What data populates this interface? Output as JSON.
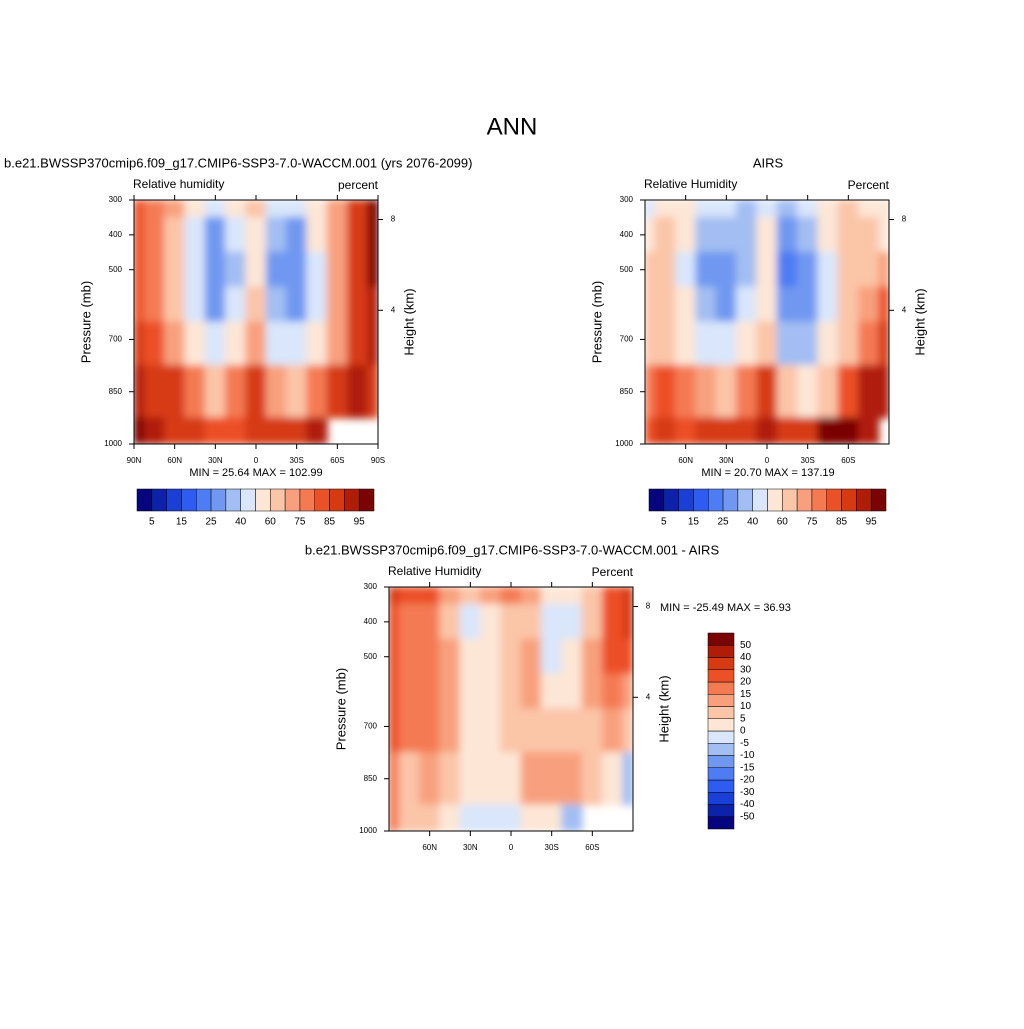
{
  "title": "ANN",
  "chart_data": [
    {
      "type": "contour",
      "title": "b.e21.BWSSP370cmip6.f09_g17.CMIP6-SSP3-7.0-WACCM.001 (yrs 2076-2099)",
      "left_string": "Relative humidity",
      "right_string": "percent",
      "ylabel": "Pressure (mb)",
      "y2label": "Height (km)",
      "stats": "MIN =  25.64  MAX = 102.99",
      "x": [
        90,
        75,
        60,
        45,
        30,
        15,
        0,
        -15,
        -30,
        -45,
        -60,
        -75,
        -90
      ],
      "y": [
        300,
        400,
        500,
        600,
        700,
        850,
        1000
      ],
      "z": [
        [
          80,
          75,
          70,
          55,
          45,
          50,
          60,
          45,
          45,
          55,
          70,
          85,
          95
        ],
        [
          80,
          75,
          65,
          45,
          30,
          40,
          55,
          35,
          30,
          50,
          70,
          85,
          95
        ],
        [
          80,
          75,
          60,
          40,
          28,
          38,
          55,
          32,
          28,
          45,
          70,
          85,
          95
        ],
        [
          82,
          78,
          65,
          45,
          32,
          42,
          60,
          35,
          30,
          45,
          70,
          85,
          90
        ],
        [
          85,
          80,
          70,
          55,
          40,
          50,
          70,
          45,
          40,
          50,
          70,
          85,
          90
        ],
        [
          90,
          88,
          85,
          75,
          65,
          75,
          85,
          70,
          65,
          75,
          85,
          92,
          88
        ],
        [
          95,
          92,
          88,
          85,
          80,
          82,
          88,
          85,
          85,
          90,
          null,
          null,
          null
        ]
      ],
      "xlim": [
        90,
        -90
      ],
      "ylim": [
        1000,
        300
      ],
      "xticks": [
        {
          "value": 90,
          "label": "90N"
        },
        {
          "value": 60,
          "label": "60N"
        },
        {
          "value": 30,
          "label": "30N"
        },
        0,
        {
          "value": -30,
          "label": "30S"
        },
        {
          "value": -60,
          "label": "60S"
        },
        {
          "value": -90,
          "label": "90S"
        }
      ],
      "yticks": [
        300,
        400,
        500,
        700,
        850,
        1000
      ],
      "y2ticks": [
        4,
        8
      ],
      "colorbar": {
        "orientation": "horizontal",
        "levels": [
          5,
          15,
          25,
          40,
          60,
          75,
          85,
          95
        ],
        "colors": [
          "#05057f",
          "#0c22a8",
          "#1a3fd6",
          "#2e5cf0",
          "#4d7cf3",
          "#7098f1",
          "#a3bef3",
          "#d9e6fb",
          "#fde6d6",
          "#fbc5a8",
          "#f8a07d",
          "#f47a52",
          "#ec5026",
          "#d63a12",
          "#b01d07",
          "#7a0403"
        ]
      }
    },
    {
      "type": "contour",
      "title": "AIRS",
      "left_string": "Relative Humidity",
      "right_string": "Percent",
      "ylabel": "Pressure (mb)",
      "y2label": "Height (km)",
      "stats": "MIN =  20.70  MAX = 137.19",
      "x": [
        90,
        75,
        60,
        45,
        30,
        15,
        0,
        -15,
        -30,
        -45,
        -60,
        -75,
        -90
      ],
      "y": [
        300,
        400,
        500,
        600,
        700,
        850,
        1000
      ],
      "z": [
        [
          40,
          50,
          50,
          45,
          40,
          38,
          45,
          35,
          45,
          55,
          65,
          55,
          50
        ],
        [
          55,
          60,
          50,
          38,
          35,
          38,
          50,
          30,
          35,
          55,
          65,
          60,
          55
        ],
        [
          60,
          60,
          45,
          30,
          28,
          35,
          50,
          22,
          30,
          45,
          60,
          65,
          70
        ],
        [
          60,
          60,
          50,
          35,
          30,
          40,
          55,
          25,
          30,
          45,
          60,
          70,
          80
        ],
        [
          65,
          65,
          55,
          45,
          40,
          50,
          65,
          38,
          35,
          50,
          65,
          75,
          85
        ],
        [
          75,
          80,
          75,
          70,
          65,
          75,
          85,
          60,
          55,
          65,
          80,
          90,
          90
        ],
        [
          80,
          85,
          80,
          85,
          85,
          85,
          90,
          85,
          85,
          95,
          95,
          90,
          null
        ]
      ],
      "xlim": [
        90,
        -90
      ],
      "ylim": [
        1000,
        300
      ],
      "xticks": [
        {
          "value": 60,
          "label": "60N"
        },
        {
          "value": 30,
          "label": "30N"
        },
        0,
        {
          "value": -30,
          "label": "30S"
        },
        {
          "value": -60,
          "label": "60S"
        }
      ],
      "yticks": [
        300,
        400,
        500,
        700,
        850,
        1000
      ],
      "y2ticks": [
        4,
        8
      ],
      "colorbar": {
        "orientation": "horizontal",
        "levels": [
          5,
          15,
          25,
          40,
          60,
          75,
          85,
          95
        ],
        "colors": [
          "#05057f",
          "#0c22a8",
          "#1a3fd6",
          "#2e5cf0",
          "#4d7cf3",
          "#7098f1",
          "#a3bef3",
          "#d9e6fb",
          "#fde6d6",
          "#fbc5a8",
          "#f8a07d",
          "#f47a52",
          "#ec5026",
          "#d63a12",
          "#b01d07",
          "#7a0403"
        ]
      }
    },
    {
      "type": "contour",
      "title": "b.e21.BWSSP370cmip6.f09_g17.CMIP6-SSP3-7.0-WACCM.001 - AIRS",
      "left_string": "Relative Humidity",
      "right_string": "Percent",
      "ylabel": "Pressure (mb)",
      "y2label": "Height (km)",
      "stats": "MIN = -25.49  MAX =  36.93",
      "x": [
        90,
        75,
        60,
        45,
        30,
        15,
        0,
        -15,
        -30,
        -45,
        -60,
        -75,
        -90
      ],
      "y": [
        300,
        400,
        500,
        600,
        700,
        850,
        1000
      ],
      "z": [
        [
          35,
          25,
          20,
          10,
          5,
          12,
          15,
          10,
          0,
          0,
          5,
          25,
          35
        ],
        [
          25,
          15,
          15,
          7,
          -5,
          2,
          5,
          5,
          -5,
          -5,
          5,
          25,
          35
        ],
        [
          20,
          15,
          15,
          10,
          0,
          3,
          5,
          10,
          -2,
          0,
          10,
          20,
          25
        ],
        [
          20,
          18,
          15,
          10,
          2,
          2,
          5,
          10,
          0,
          0,
          10,
          15,
          10
        ],
        [
          20,
          15,
          15,
          10,
          0,
          0,
          5,
          7,
          5,
          5,
          5,
          10,
          5
        ],
        [
          15,
          8,
          10,
          5,
          0,
          0,
          0,
          10,
          10,
          10,
          5,
          2,
          -10
        ],
        [
          15,
          7,
          8,
          0,
          -5,
          -3,
          -2,
          0,
          0,
          -10,
          null,
          null,
          null
        ]
      ],
      "xlim": [
        90,
        -90
      ],
      "ylim": [
        1000,
        300
      ],
      "xticks": [
        {
          "value": 60,
          "label": "60N"
        },
        {
          "value": 30,
          "label": "30N"
        },
        0,
        {
          "value": -30,
          "label": "30S"
        },
        {
          "value": -60,
          "label": "60S"
        }
      ],
      "yticks": [
        300,
        400,
        500,
        700,
        850,
        1000
      ],
      "y2ticks": [
        4,
        8
      ],
      "colorbar": {
        "orientation": "vertical",
        "levels": [
          -50,
          -40,
          -30,
          -20,
          -15,
          -10,
          -5,
          0,
          5,
          10,
          15,
          20,
          30,
          40,
          50
        ],
        "colors": [
          "#05057f",
          "#0c22a8",
          "#1a3fd6",
          "#2e5cf0",
          "#4d7cf3",
          "#7098f1",
          "#a3bef3",
          "#d9e6fb",
          "#fde6d6",
          "#fbc5a8",
          "#f8a07d",
          "#f47a52",
          "#ec5026",
          "#d63a12",
          "#b01d07",
          "#7a0403"
        ]
      }
    }
  ]
}
